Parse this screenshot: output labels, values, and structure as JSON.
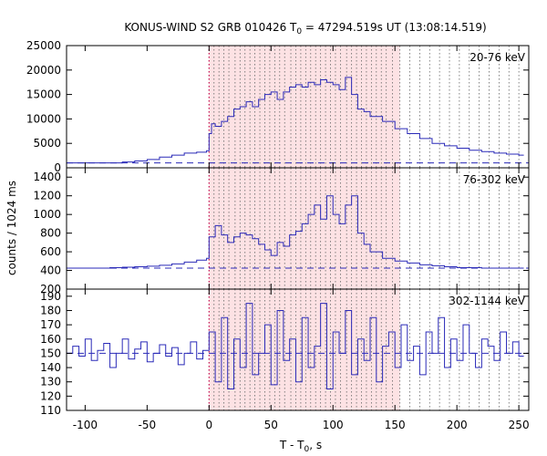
{
  "chart_data": {
    "type": "line",
    "title_prefix": "KONUS-WIND S2 GRB 010426 T",
    "title_sub": "0",
    "title_suffix": " = 47294.519s UT (13:08:14.519)",
    "xlabel_prefix": "T - T",
    "xlabel_sub": "0",
    "xlabel_suffix": ", s",
    "ylabel": "counts / 1024 ms",
    "x_range": [
      -115,
      258
    ],
    "x_ticks": [
      -100,
      -50,
      0,
      50,
      100,
      150,
      200,
      250
    ],
    "shaded_interval": [
      0,
      154
    ],
    "shade_color": "#fde2e4",
    "series_color": "#2a2ab8",
    "dotted_lines": [
      0,
      4,
      8,
      12,
      16,
      21,
      25,
      29,
      33,
      37,
      41,
      45,
      49,
      53,
      57,
      61,
      66,
      70,
      74,
      78,
      82,
      86,
      90,
      94,
      98,
      102,
      106,
      111,
      115,
      119,
      123,
      127,
      131,
      135,
      139,
      143,
      148,
      154,
      162,
      170,
      178,
      186,
      194,
      202,
      210,
      218,
      226,
      234,
      242,
      250
    ],
    "panels": [
      {
        "label": "20-76 keV",
        "ylim": [
          0,
          25000
        ],
        "y_ticks": [
          0,
          5000,
          10000,
          15000,
          20000,
          25000
        ],
        "background_level": 1000,
        "x": [
          -115,
          -80,
          -70,
          -60,
          -50,
          -40,
          -30,
          -20,
          -10,
          -2,
          0,
          2,
          5,
          10,
          15,
          20,
          25,
          30,
          35,
          40,
          45,
          50,
          55,
          60,
          65,
          70,
          75,
          80,
          85,
          90,
          95,
          100,
          105,
          110,
          115,
          120,
          125,
          130,
          140,
          150,
          160,
          170,
          180,
          190,
          200,
          210,
          220,
          230,
          240,
          250
        ],
        "values": [
          1000,
          1000,
          1200,
          1400,
          1700,
          2200,
          2600,
          3000,
          3200,
          3500,
          7000,
          9000,
          8500,
          9500,
          10500,
          12000,
          12500,
          13500,
          12500,
          14000,
          15000,
          15500,
          14000,
          15500,
          16500,
          17000,
          16500,
          17500,
          17000,
          18000,
          17500,
          17000,
          16000,
          18500,
          15000,
          12000,
          11500,
          10500,
          9500,
          8000,
          7000,
          6000,
          5000,
          4500,
          4000,
          3600,
          3300,
          3000,
          2800,
          2600
        ]
      },
      {
        "label": "76-302 keV",
        "ylim": [
          200,
          1500
        ],
        "y_ticks": [
          200,
          400,
          600,
          800,
          1000,
          1200,
          1400
        ],
        "background_level": 425,
        "x": [
          -115,
          -80,
          -70,
          -60,
          -50,
          -40,
          -30,
          -20,
          -10,
          -2,
          0,
          5,
          10,
          15,
          20,
          25,
          30,
          35,
          40,
          45,
          50,
          55,
          60,
          65,
          70,
          75,
          80,
          85,
          90,
          95,
          100,
          105,
          110,
          115,
          120,
          125,
          130,
          140,
          150,
          160,
          170,
          180,
          190,
          200,
          210,
          220,
          230,
          240,
          250
        ],
        "values": [
          425,
          430,
          435,
          440,
          445,
          455,
          470,
          490,
          510,
          530,
          760,
          880,
          780,
          700,
          760,
          800,
          780,
          740,
          680,
          620,
          560,
          700,
          660,
          780,
          820,
          900,
          1000,
          1100,
          950,
          1200,
          1000,
          900,
          1100,
          1200,
          800,
          680,
          600,
          530,
          500,
          480,
          460,
          450,
          440,
          430,
          430,
          425,
          425,
          425,
          425
        ]
      },
      {
        "label": "302-1144 keV",
        "ylim": [
          110,
          195
        ],
        "y_ticks": [
          110,
          120,
          130,
          140,
          150,
          160,
          170,
          180,
          190
        ],
        "background_level": 150,
        "x": [
          -115,
          -110,
          -105,
          -100,
          -95,
          -90,
          -85,
          -80,
          -75,
          -70,
          -65,
          -60,
          -55,
          -50,
          -45,
          -40,
          -35,
          -30,
          -25,
          -20,
          -15,
          -10,
          -5,
          0,
          5,
          10,
          15,
          20,
          25,
          30,
          35,
          40,
          45,
          50,
          55,
          60,
          65,
          70,
          75,
          80,
          85,
          90,
          95,
          100,
          105,
          110,
          115,
          120,
          125,
          130,
          135,
          140,
          145,
          150,
          155,
          160,
          165,
          170,
          175,
          180,
          185,
          190,
          195,
          200,
          205,
          210,
          215,
          220,
          225,
          230,
          235,
          240,
          245,
          250
        ],
        "values": [
          150,
          155,
          148,
          160,
          145,
          152,
          157,
          140,
          150,
          160,
          146,
          153,
          158,
          144,
          150,
          156,
          148,
          154,
          142,
          150,
          158,
          146,
          152,
          165,
          130,
          175,
          125,
          160,
          140,
          185,
          135,
          150,
          170,
          128,
          180,
          145,
          160,
          130,
          175,
          140,
          155,
          185,
          125,
          165,
          150,
          180,
          135,
          160,
          145,
          175,
          130,
          155,
          165,
          140,
          170,
          145,
          155,
          135,
          165,
          150,
          175,
          140,
          160,
          145,
          170,
          150,
          140,
          160,
          155,
          145,
          165,
          150,
          158,
          148
        ]
      }
    ]
  }
}
